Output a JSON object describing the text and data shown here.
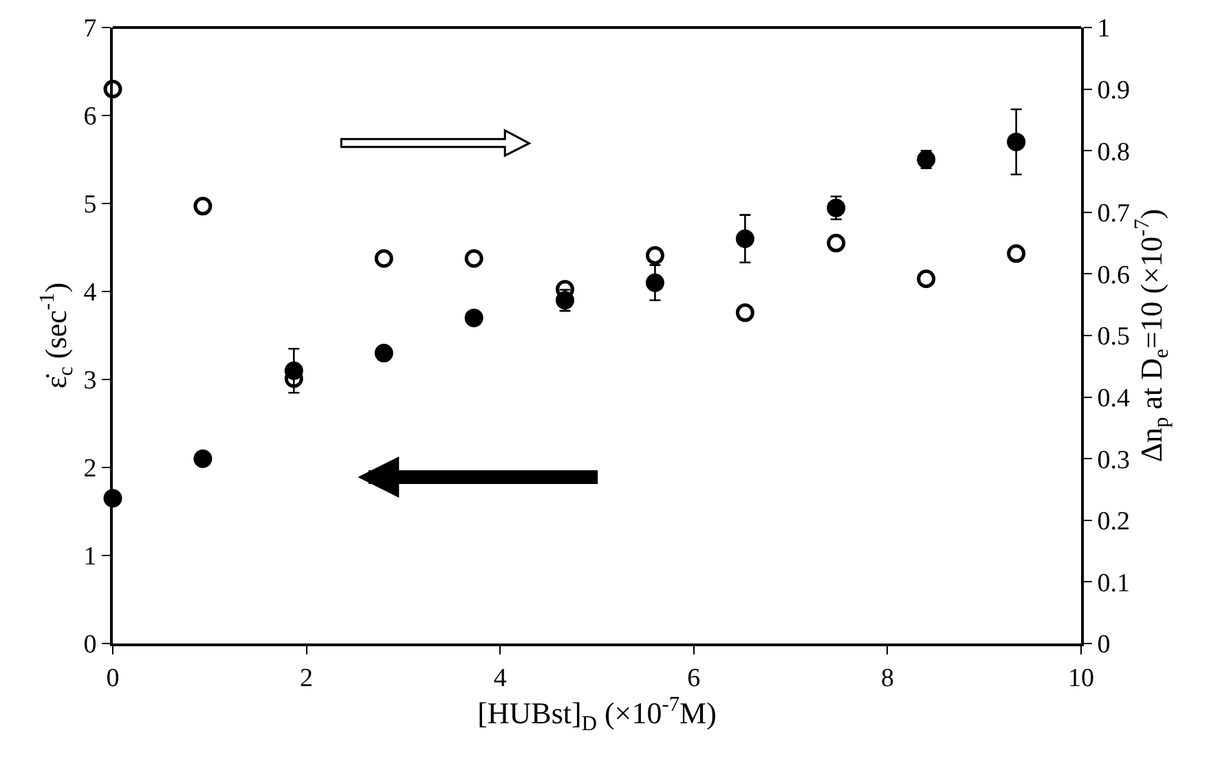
{
  "chart_data": {
    "type": "scatter",
    "xlabel": "[HUBst]$_{D}$ (×10$^{-7}$M)",
    "ylabel": "ε̇$_{c}$ (sec$^{-1}$)",
    "y2label": "Δn$_{p}$ at D$_{e}$=10 (×10$^{-7}$)",
    "x": [
      0,
      0.93,
      1.87,
      2.8,
      3.73,
      4.67,
      5.6,
      6.53,
      7.47,
      8.4,
      9.33
    ],
    "series": [
      {
        "color": "#000000",
        "values": [
          1.65,
          2.1,
          3.1,
          3.3,
          3.7,
          3.9,
          4.1,
          4.6,
          4.95,
          5.5,
          5.7
        ],
        "errors": [
          null,
          null,
          0.25,
          null,
          null,
          0.12,
          0.2,
          0.27,
          0.13,
          0.1,
          0.37
        ]
      },
      {
        "color": "#000000",
        "axis": "y2",
        "values": [
          0.9,
          0.71,
          0.43,
          0.625,
          0.625,
          0.575,
          0.63,
          0.537,
          0.65,
          0.592,
          0.633
        ]
      }
    ],
    "xlim": [
      0,
      10
    ],
    "xticks": [
      0,
      2,
      4,
      6,
      8,
      10
    ],
    "ylim": [
      0,
      7
    ],
    "yticks": [
      0,
      1,
      2,
      3,
      4,
      5,
      6,
      7
    ],
    "y2lim": [
      0,
      1
    ],
    "y2ticks": [
      0,
      0.1,
      0.2,
      0.3,
      0.4,
      0.5,
      0.6,
      0.7,
      0.8,
      0.9,
      1
    ],
    "marker": "circle"
  }
}
